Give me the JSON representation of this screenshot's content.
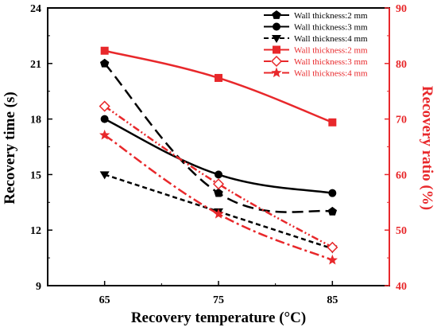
{
  "chart_data": {
    "type": "line",
    "xlabel": "Recovery temperature (°C)",
    "ylabel_left": "Recovery time (s)",
    "ylabel_right": "Recovery ratio (%)",
    "x": [
      65,
      75,
      85
    ],
    "x_ticks": [
      "65",
      "75",
      "85"
    ],
    "xlim": [
      60,
      90
    ],
    "ylim_left": [
      9,
      24
    ],
    "ylim_right": [
      40,
      90
    ],
    "y_left_ticks": [
      "9",
      "12",
      "15",
      "18",
      "21",
      "24"
    ],
    "y_right_ticks": [
      "40",
      "50",
      "60",
      "70",
      "80",
      "90"
    ],
    "colors": {
      "left": "#000000",
      "right": "#e8282b"
    },
    "legend_placement": "top-right",
    "series": [
      {
        "name": "Wall thickness:2 mm",
        "axis": "left",
        "color": "#000000",
        "marker": "pentagon",
        "dash": "long-dash",
        "values": [
          21,
          14,
          13
        ]
      },
      {
        "name": "Wall thickness:3 mm",
        "axis": "left",
        "color": "#000000",
        "marker": "circle",
        "dash": "solid",
        "values": [
          18,
          15,
          14
        ]
      },
      {
        "name": "Wall thickness:4 mm",
        "axis": "left",
        "color": "#000000",
        "marker": "triangle-down",
        "dash": "short-dash",
        "values": [
          15,
          13,
          11
        ]
      },
      {
        "name": "Wall thickness:2 mm",
        "axis": "right",
        "color": "#e8282b",
        "marker": "square",
        "dash": "solid",
        "values": [
          82.3,
          77.4,
          69.4
        ]
      },
      {
        "name": "Wall thickness:3 mm",
        "axis": "right",
        "color": "#e8282b",
        "marker": "diamond-open",
        "dash": "dash-dot-dot",
        "values": [
          72.3,
          58.3,
          46.9
        ]
      },
      {
        "name": "Wall thickness:4 mm",
        "axis": "right",
        "color": "#e8282b",
        "marker": "star",
        "dash": "dash-dot",
        "values": [
          67.1,
          52.9,
          44.6
        ]
      }
    ]
  }
}
